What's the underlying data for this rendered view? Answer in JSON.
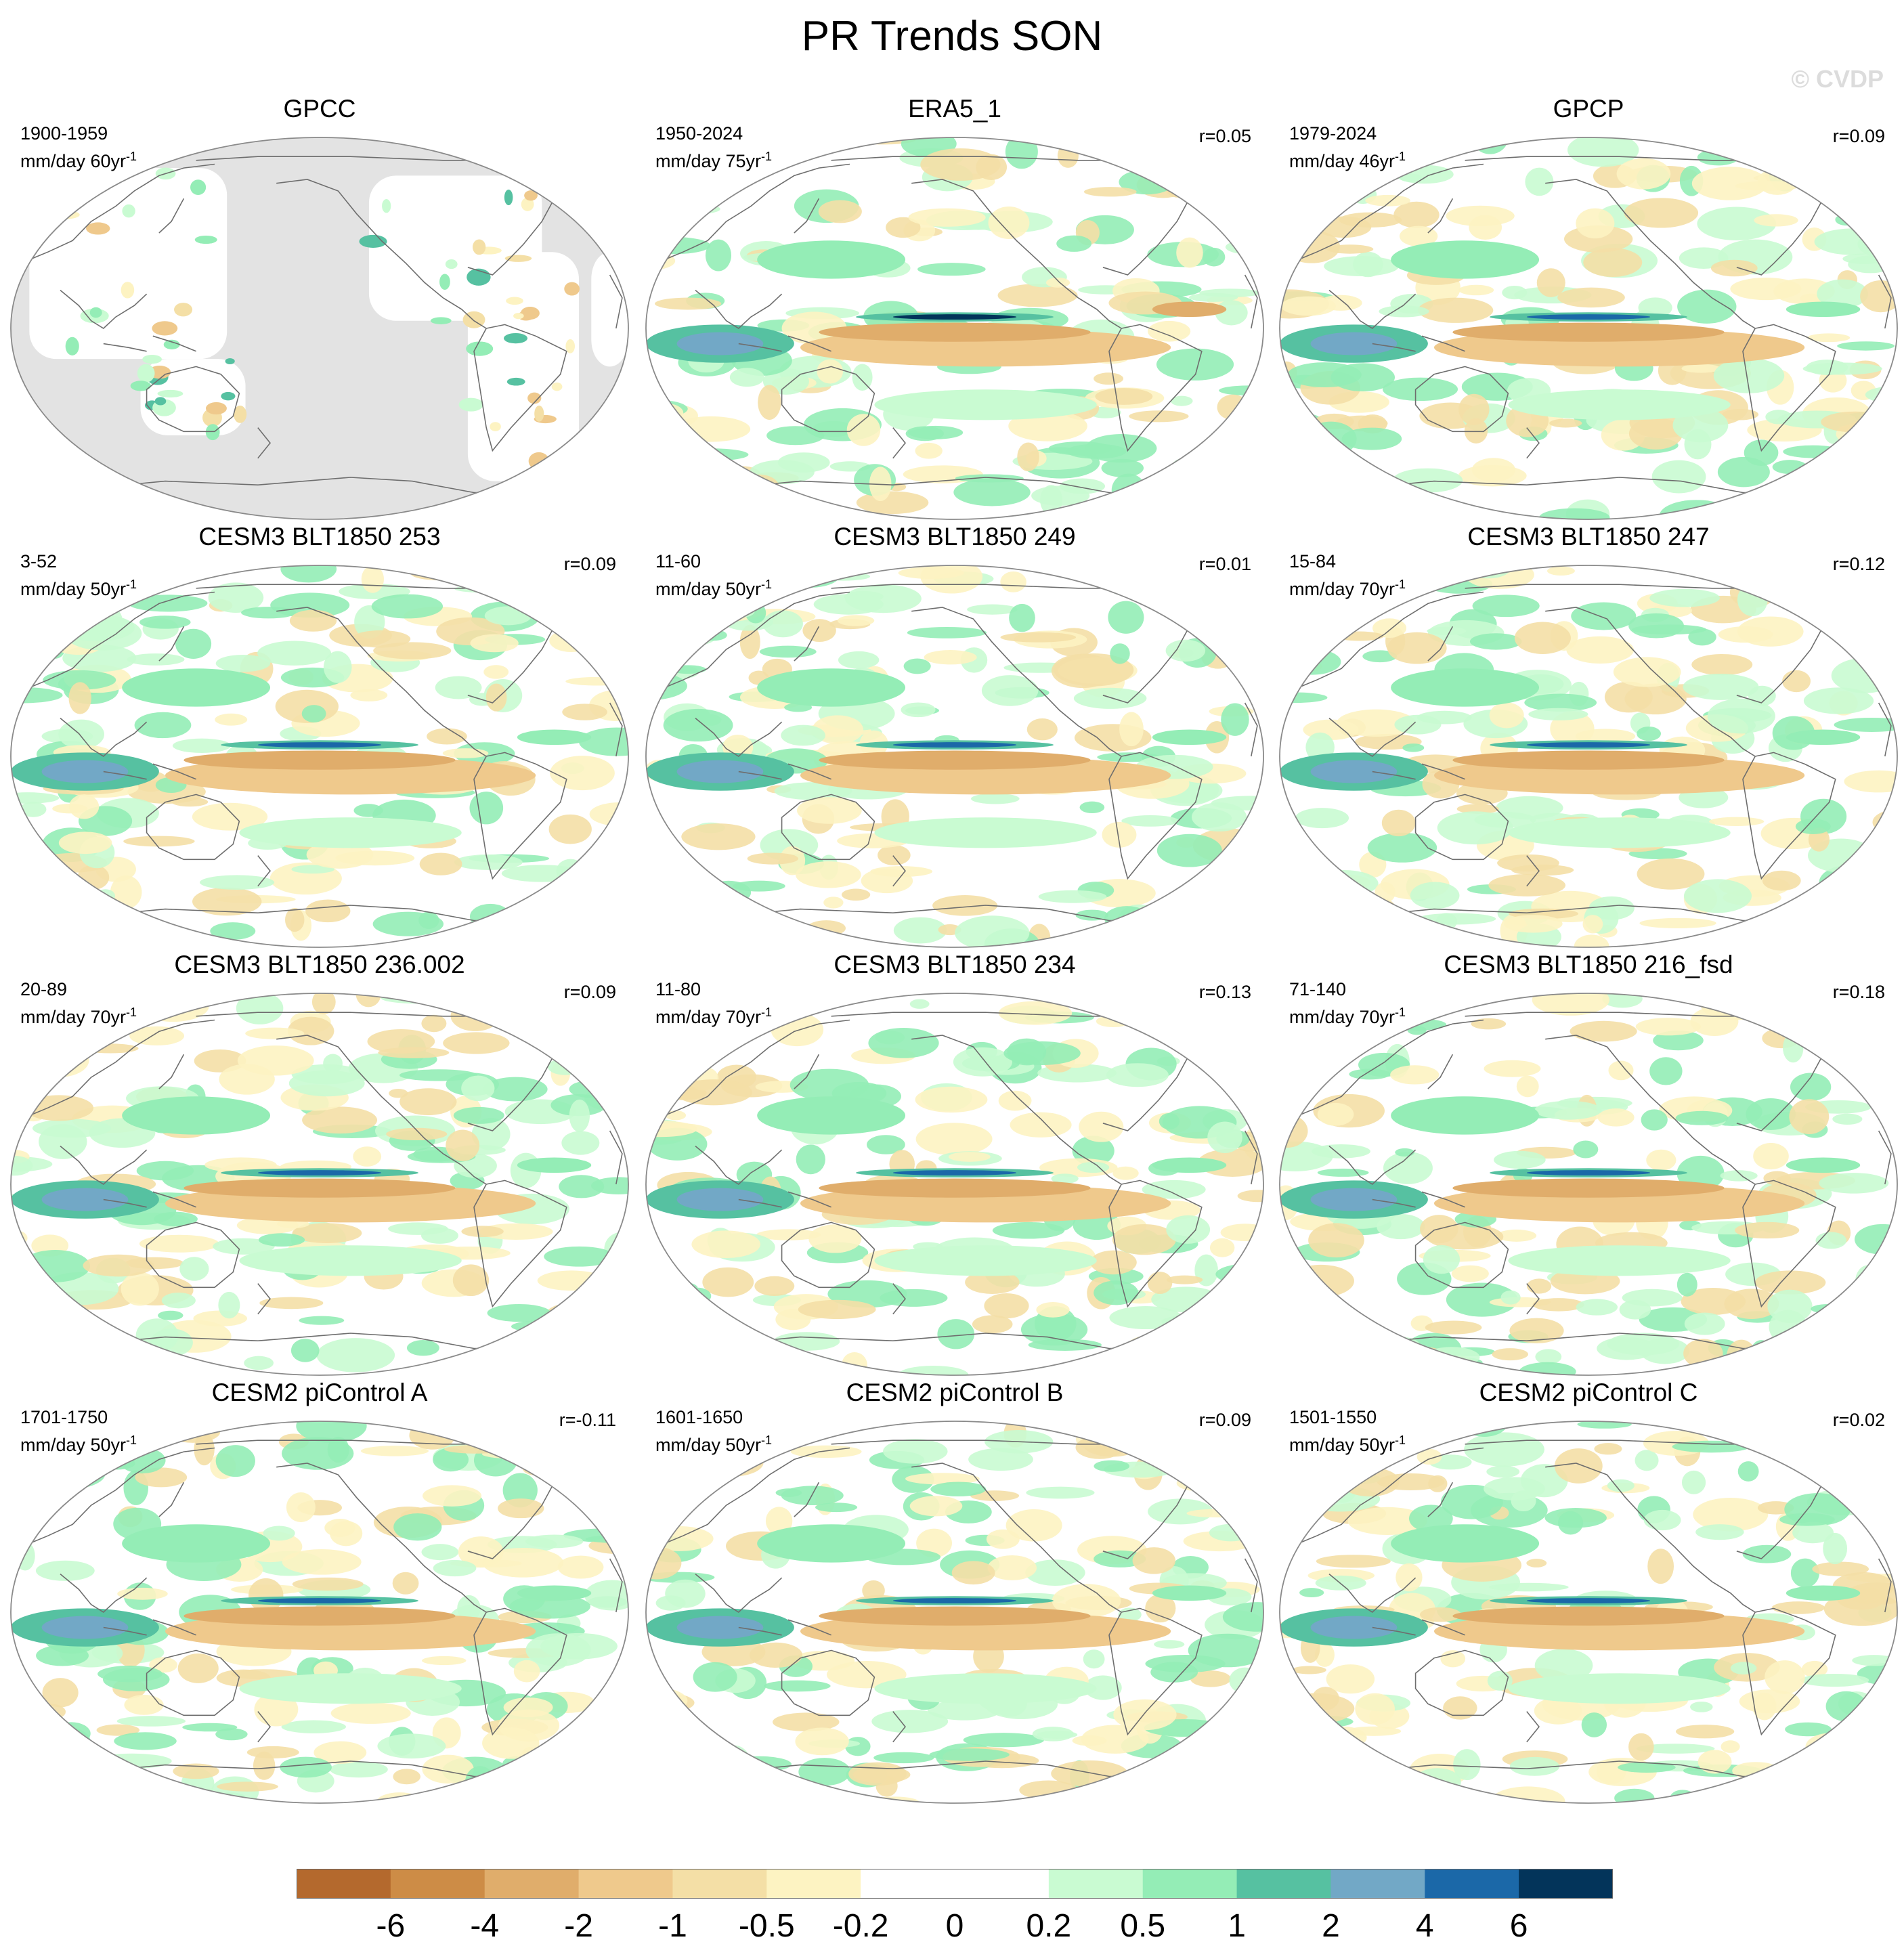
{
  "title": "PR Trends SON",
  "watermark": "© CVDP",
  "units_label": "mm/day",
  "panels": [
    {
      "title": "GPCC",
      "period": "1900-1959",
      "trend_years": "60",
      "corr": "",
      "masked": true
    },
    {
      "title": "ERA5_1",
      "period": "1950-2024",
      "trend_years": "75",
      "corr": "r=0.05",
      "masked": false
    },
    {
      "title": "GPCP",
      "period": "1979-2024",
      "trend_years": "46",
      "corr": "r=0.09",
      "masked": false
    },
    {
      "title": "CESM3 BLT1850 253",
      "period": "3-52",
      "trend_years": "50",
      "corr": "r=0.09",
      "masked": false
    },
    {
      "title": "CESM3 BLT1850 249",
      "period": "11-60",
      "trend_years": "50",
      "corr": "r=0.01",
      "masked": false
    },
    {
      "title": "CESM3 BLT1850 247",
      "period": "15-84",
      "trend_years": "70",
      "corr": "r=0.12",
      "masked": false
    },
    {
      "title": "CESM3 BLT1850 236.002",
      "period": "20-89",
      "trend_years": "70",
      "corr": "r=0.09",
      "masked": false
    },
    {
      "title": "CESM3 BLT1850 234",
      "period": "11-80",
      "trend_years": "70",
      "corr": "r=0.13",
      "masked": false
    },
    {
      "title": "CESM3 BLT1850 216_fsd",
      "period": "71-140",
      "trend_years": "70",
      "corr": "r=0.18",
      "masked": false
    },
    {
      "title": "CESM2 piControl A",
      "period": "1701-1750",
      "trend_years": "50",
      "corr": "r=-0.11",
      "masked": false
    },
    {
      "title": "CESM2 piControl B",
      "period": "1601-1650",
      "trend_years": "50",
      "corr": "r=0.09",
      "masked": false
    },
    {
      "title": "CESM2 piControl C",
      "period": "1501-1550",
      "trend_years": "50",
      "corr": "r=0.02",
      "masked": false
    }
  ],
  "colorbar": {
    "labels": [
      "-6",
      "-4",
      "-2",
      "-1",
      "-0.5",
      "-0.2",
      "0",
      "0.2",
      "0.5",
      "1",
      "2",
      "4",
      "6"
    ],
    "colors": [
      "#b4692d",
      "#cd8c46",
      "#e0ad6b",
      "#efc98c",
      "#f4dfa6",
      "#fdf3c2",
      "#ffffff",
      "#ffffff",
      "#c9fbd2",
      "#94edb6",
      "#56c1a1",
      "#72a8c6",
      "#1b68a8",
      "#03345a"
    ]
  },
  "colors": {
    "land_mask": "#e3e3e3",
    "coast": "#6e6e6e",
    "ocean": "#ffffff"
  }
}
